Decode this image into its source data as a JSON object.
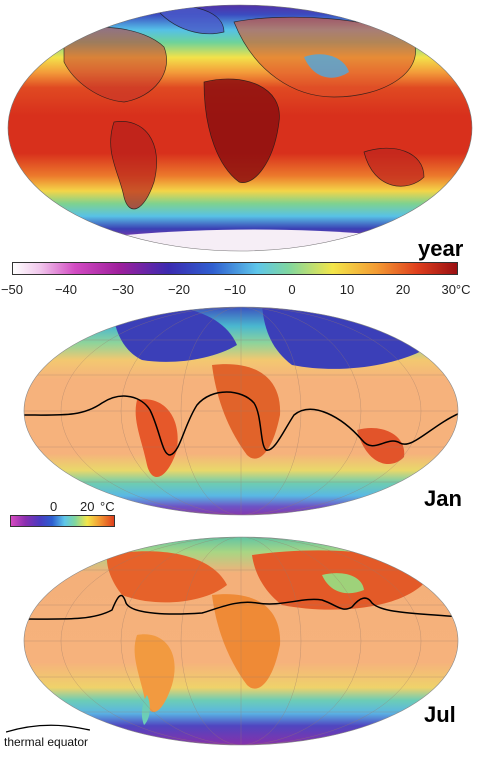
{
  "panels": {
    "year": "year",
    "jan": "Jan",
    "jul": "Jul"
  },
  "year_scale": {
    "ticks": [
      "−50",
      "−40",
      "−30",
      "−20",
      "−10",
      "0",
      "10",
      "20",
      "30°C"
    ]
  },
  "month_scale": {
    "tick_0": "0",
    "tick_20": "20",
    "unit": "°C"
  },
  "legend": {
    "thermal_equator": "thermal equator"
  },
  "colors": {
    "deep_purple": "#4b0f7a",
    "magenta": "#c81e8c",
    "blue": "#2a3fb0",
    "cyan": "#4fc3e6",
    "green": "#62c98f",
    "yellow": "#f4e04c",
    "orange": "#f6a040",
    "red": "#e3421f",
    "dark_red": "#a8140f",
    "peach": "#f7b57c"
  }
}
